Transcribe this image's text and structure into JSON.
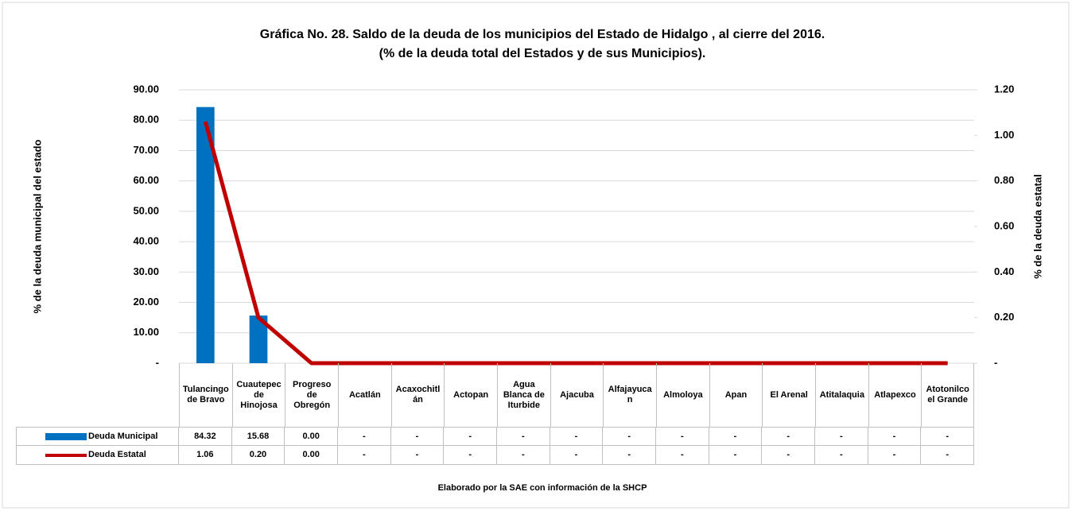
{
  "chart_data": {
    "type": "bar_line",
    "title": "Gráfica No. 28. Saldo de la deuda de los municipios del Estado de  Hidalgo , al cierre del 2016.",
    "subtitle": "(% de la deuda total del Estados y de sus Municipios).",
    "y_label": "% de la deuda municipal del estado",
    "y2_label": "% de la deuda estatal",
    "footer": "Elaborado por la SAE con información de  la SHCP",
    "categories": [
      "Tulancingo de Bravo",
      "Cuautepec de Hinojosa",
      "Progreso de Obregón",
      "Acatlán",
      "Acaxochitlán",
      "Actopan",
      "Agua Blanca de Iturbide",
      "Ajacuba",
      "Alfajayucan",
      "Almoloya",
      "Apan",
      "El Arenal",
      "Atitalaquia",
      "Atlapexco",
      "Atotonilco el Grande"
    ],
    "series": [
      {
        "name": "Deuda Municipal",
        "type": "bar",
        "color": "#0070c0",
        "axis": "y",
        "values": [
          84.32,
          15.68,
          0,
          0,
          0,
          0,
          0,
          0,
          0,
          0,
          0,
          0,
          0,
          0,
          0
        ],
        "value_labels": [
          "84.32",
          "15.68",
          "0.00",
          "-",
          "-",
          "-",
          "-",
          "-",
          "-",
          "-",
          "-",
          "-",
          "-",
          "-",
          "-"
        ]
      },
      {
        "name": "Deuda Estatal",
        "type": "line",
        "color": "#c00000",
        "axis": "y2",
        "values": [
          1.06,
          0.2,
          0,
          0,
          0,
          0,
          0,
          0,
          0,
          0,
          0,
          0,
          0,
          0,
          0
        ],
        "value_labels": [
          "1.06",
          "0.20",
          "0.00",
          "-",
          "-",
          "-",
          "-",
          "-",
          "-",
          "-",
          "-",
          "-",
          "-",
          "-",
          "-"
        ]
      }
    ],
    "ylim": [
      0,
      90
    ],
    "yticks": [
      {
        "value": 0,
        "label": "-"
      },
      {
        "value": 10,
        "label": "10.00"
      },
      {
        "value": 20,
        "label": "20.00"
      },
      {
        "value": 30,
        "label": "30.00"
      },
      {
        "value": 40,
        "label": "40.00"
      },
      {
        "value": 50,
        "label": "50.00"
      },
      {
        "value": 60,
        "label": "60.00"
      },
      {
        "value": 70,
        "label": "70.00"
      },
      {
        "value": 80,
        "label": "80.00"
      },
      {
        "value": 90,
        "label": "90.00"
      }
    ],
    "y2lim": [
      0,
      1.2
    ],
    "y2ticks": [
      {
        "value": 0,
        "label": "-"
      },
      {
        "value": 0.2,
        "label": "0.20"
      },
      {
        "value": 0.4,
        "label": "0.40"
      },
      {
        "value": 0.6,
        "label": "0.60"
      },
      {
        "value": 0.8,
        "label": "0.80"
      },
      {
        "value": 1.0,
        "label": "1.00"
      },
      {
        "value": 1.2,
        "label": "1.20"
      }
    ],
    "grid": true
  }
}
